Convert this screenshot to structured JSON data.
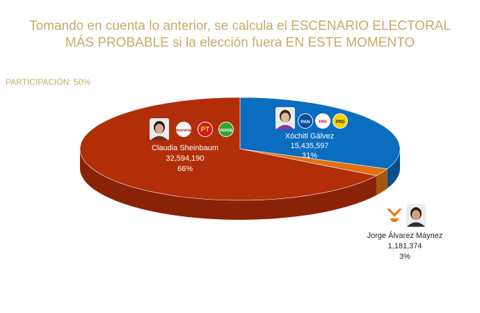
{
  "header": {
    "title_line1": "Tomando en cuenta lo anterior, se calcula el ESCENARIO ELECTORAL",
    "title_line2": "MÁS PROBABLE si la elección fuera EN ESTE MOMENTO",
    "participation": "PARTICIPACIÓN: 50%"
  },
  "chart_data": {
    "type": "pie",
    "series": [
      {
        "name": "Claudia Sheinbaum",
        "votes": "32,594,190",
        "value": 32594190,
        "percent_label": "66%",
        "color": "#b22e08",
        "side_color": "#8a2205",
        "party_logos": [
          "morena",
          "PT",
          "VERDE"
        ]
      },
      {
        "name": "Xóchitl Gálvez",
        "votes": "15,435,597",
        "value": 15435597,
        "percent_label": "31%",
        "color": "#0b6dbf",
        "side_color": "#08508e",
        "party_logos": [
          "PAN",
          "PRI",
          "PRD"
        ]
      },
      {
        "name": "Jorge Álvarez Máynez",
        "votes": "1,181,374",
        "value": 1181374,
        "percent_label": "3%",
        "color": "#e07010",
        "side_color": "#a9540b",
        "party_logos": [
          "MC"
        ]
      }
    ]
  }
}
